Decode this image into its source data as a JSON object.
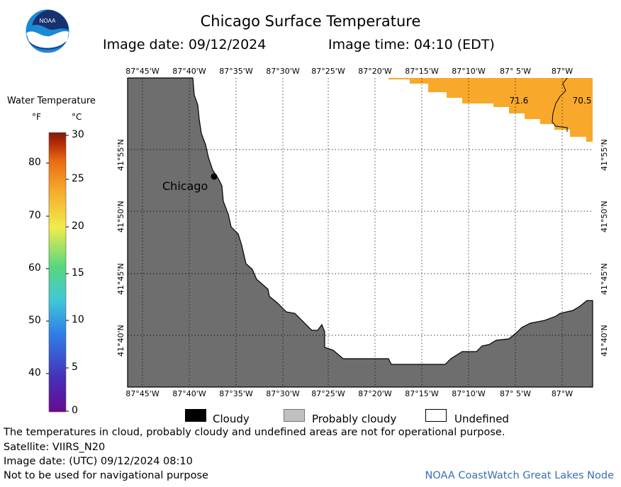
{
  "header": {
    "title": "Chicago Surface Temperature",
    "image_date": "Image date: 09/12/2024",
    "image_time": "Image time: 04:10 (EDT)"
  },
  "logo": {
    "text": "NOAA",
    "icon": "noaa-logo"
  },
  "legend": {
    "title": "Water Temperature",
    "unit_f": "°F",
    "unit_c": "°C",
    "f_ticks": [
      "80",
      "70",
      "60",
      "50",
      "40"
    ],
    "c_ticks": [
      "30",
      "25",
      "20",
      "15",
      "10",
      "5",
      "0"
    ],
    "c_range": [
      0,
      30
    ],
    "colors": [
      "#6a0a8e",
      "#4530b8",
      "#2f7fe6",
      "#41c8d8",
      "#58d77e",
      "#f1ec4b",
      "#f6a62a",
      "#e86a12",
      "#b72b08",
      "#801a08"
    ]
  },
  "map": {
    "lon_labels": [
      "87°45'W",
      "87°40'W",
      "87°35'W",
      "87°30'W",
      "87°25'W",
      "87°20'W",
      "87°15'W",
      "87°10'W",
      "87° 5'W",
      "87°W"
    ],
    "lat_labels": [
      "41°55'N",
      "41°50'N",
      "41°45'N",
      "41°40'N"
    ],
    "city": "Chicago",
    "temp_labels": [
      "71.6",
      "70.5"
    ],
    "land_color": "#6e6e6e",
    "sst_color": "#f8a92c"
  },
  "key": {
    "cloudy": "Cloudy",
    "probably_cloudy": "Probably cloudy",
    "undefined": "Undefined",
    "cloudy_color": "#000000",
    "probably_cloudy_color": "#c0c0c0",
    "undefined_color": "#ffffff"
  },
  "footer": {
    "disclaimer": "The temperatures in cloud, probably cloudy and undefined areas are not for operational purpose.",
    "satellite": "Satellite: VIIRS_N20",
    "utc_date": "Image date: (UTC) 09/12/2024  08:10",
    "nav_warning": "Not to be used for navigational purpose",
    "node": "NOAA CoastWatch Great Lakes Node"
  }
}
